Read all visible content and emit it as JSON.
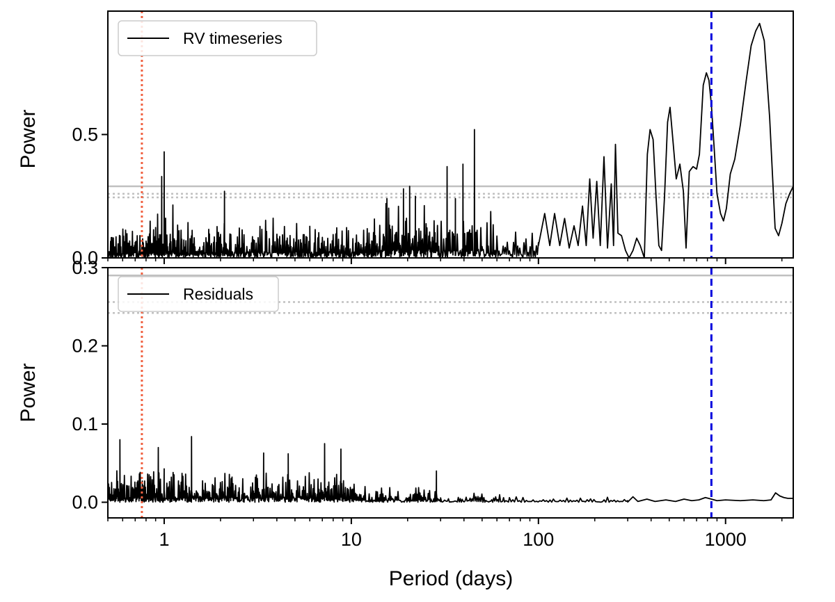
{
  "chart_data": [
    {
      "type": "line",
      "panel": "top",
      "ylabel": "Power",
      "xlabel": "",
      "xscale": "log",
      "xlim": [
        0.5,
        2300
      ],
      "ylim": [
        0,
        1.0
      ],
      "yticks": [
        0.0,
        0.5
      ],
      "ytick_labels": [
        "0.0",
        "0.5"
      ],
      "legend": {
        "label": "RV timeseries",
        "placement": "top-left"
      },
      "thresholds": [
        {
          "y": 0.29,
          "style": "solid",
          "color": "#c0c0c0"
        },
        {
          "y": 0.26,
          "style": "dotted",
          "color": "#c0c0c0"
        },
        {
          "y": 0.245,
          "style": "dotted",
          "color": "#c0c0c0"
        }
      ],
      "vlines": [
        {
          "x": 0.76,
          "style": "dotted",
          "color": "#f06040"
        },
        {
          "x": 840,
          "style": "dashed",
          "color": "#0000dd"
        }
      ],
      "series": [
        {
          "color": "#000000",
          "noise_segments": [
            {
              "x0": 0.5,
              "x1": 0.9,
              "amp": 0.16,
              "count": 140
            },
            {
              "x0": 0.9,
              "x1": 1.15,
              "amp": 0.26,
              "count": 60
            },
            {
              "x0": 1.15,
              "x1": 2.0,
              "amp": 0.16,
              "count": 130
            },
            {
              "x0": 2.0,
              "x1": 6.0,
              "amp": 0.17,
              "count": 190
            },
            {
              "x0": 6.0,
              "x1": 13.0,
              "amp": 0.16,
              "count": 140
            },
            {
              "x0": 13.0,
              "x1": 28.0,
              "amp": 0.24,
              "count": 140
            },
            {
              "x0": 28.0,
              "x1": 60.0,
              "amp": 0.22,
              "count": 100
            },
            {
              "x0": 60.0,
              "x1": 100.0,
              "amp": 0.12,
              "count": 40
            }
          ],
          "spikes": [
            {
              "x": 1.0,
              "y": 0.43
            },
            {
              "x": 0.97,
              "y": 0.33
            },
            {
              "x": 2.1,
              "y": 0.27
            },
            {
              "x": 15.5,
              "y": 0.24
            },
            {
              "x": 19.0,
              "y": 0.28
            },
            {
              "x": 20.5,
              "y": 0.29
            },
            {
              "x": 22.0,
              "y": 0.25
            },
            {
              "x": 32.5,
              "y": 0.37
            },
            {
              "x": 36.0,
              "y": 0.24
            },
            {
              "x": 39.5,
              "y": 0.38
            },
            {
              "x": 45.5,
              "y": 0.52
            }
          ],
          "points": [
            [
              100,
              0.05
            ],
            [
              108,
              0.18
            ],
            [
              115,
              0.05
            ],
            [
              122,
              0.18
            ],
            [
              130,
              0.05
            ],
            [
              138,
              0.16
            ],
            [
              146,
              0.04
            ],
            [
              155,
              0.13
            ],
            [
              163,
              0.05
            ],
            [
              172,
              0.21
            ],
            [
              180,
              0.05
            ],
            [
              188,
              0.32
            ],
            [
              196,
              0.08
            ],
            [
              205,
              0.31
            ],
            [
              214,
              0.05
            ],
            [
              224,
              0.41
            ],
            [
              234,
              0.04
            ],
            [
              245,
              0.3
            ],
            [
              252,
              0.05
            ],
            [
              258,
              0.46
            ],
            [
              266,
              0.1
            ],
            [
              278,
              0.09
            ],
            [
              292,
              0.03
            ],
            [
              305,
              0.0
            ],
            [
              320,
              0.03
            ],
            [
              335,
              0.08
            ],
            [
              350,
              0.05
            ],
            [
              368,
              0.0
            ],
            [
              382,
              0.42
            ],
            [
              395,
              0.52
            ],
            [
              410,
              0.48
            ],
            [
              425,
              0.25
            ],
            [
              440,
              0.05
            ],
            [
              455,
              0.03
            ],
            [
              472,
              0.25
            ],
            [
              490,
              0.55
            ],
            [
              505,
              0.61
            ],
            [
              520,
              0.5
            ],
            [
              545,
              0.32
            ],
            [
              570,
              0.38
            ],
            [
              595,
              0.27
            ],
            [
              615,
              0.04
            ],
            [
              640,
              0.35
            ],
            [
              670,
              0.37
            ],
            [
              700,
              0.36
            ],
            [
              725,
              0.42
            ],
            [
              760,
              0.7
            ],
            [
              790,
              0.75
            ],
            [
              815,
              0.72
            ],
            [
              840,
              0.62
            ],
            [
              870,
              0.44
            ],
            [
              900,
              0.26
            ],
            [
              940,
              0.18
            ],
            [
              975,
              0.15
            ],
            [
              1010,
              0.2
            ],
            [
              1060,
              0.34
            ],
            [
              1120,
              0.4
            ],
            [
              1200,
              0.54
            ],
            [
              1290,
              0.72
            ],
            [
              1370,
              0.86
            ],
            [
              1450,
              0.92
            ],
            [
              1520,
              0.95
            ],
            [
              1610,
              0.88
            ],
            [
              1720,
              0.57
            ],
            [
              1840,
              0.12
            ],
            [
              1920,
              0.09
            ],
            [
              2000,
              0.14
            ],
            [
              2100,
              0.22
            ],
            [
              2200,
              0.26
            ],
            [
              2300,
              0.29
            ]
          ]
        }
      ]
    },
    {
      "type": "line",
      "panel": "bottom",
      "ylabel": "Power",
      "xlabel": "Period (days)",
      "xscale": "log",
      "xlim": [
        0.5,
        2300
      ],
      "ylim": [
        -0.02,
        0.3
      ],
      "yticks": [
        0.0,
        0.1,
        0.2,
        0.3
      ],
      "ytick_labels": [
        "0.0",
        "0.1",
        "0.2",
        "0.3"
      ],
      "xticks": [
        1,
        10,
        100,
        1000
      ],
      "xtick_labels": [
        "1",
        "10",
        "100",
        "1000"
      ],
      "legend": {
        "label": "Residuals",
        "placement": "top-left"
      },
      "thresholds": [
        {
          "y": 0.29,
          "style": "solid",
          "color": "#c0c0c0"
        },
        {
          "y": 0.256,
          "style": "dotted",
          "color": "#c0c0c0"
        },
        {
          "y": 0.242,
          "style": "dotted",
          "color": "#c0c0c0"
        }
      ],
      "vlines": [
        {
          "x": 0.76,
          "style": "dotted",
          "color": "#f06040"
        },
        {
          "x": 840,
          "style": "dashed",
          "color": "#0000dd"
        }
      ],
      "series": [
        {
          "color": "#000000",
          "noise_segments": [
            {
              "x0": 0.5,
              "x1": 1.0,
              "amp": 0.05,
              "count": 150
            },
            {
              "x0": 1.0,
              "x1": 3.0,
              "amp": 0.045,
              "count": 200
            },
            {
              "x0": 3.0,
              "x1": 10.0,
              "amp": 0.045,
              "count": 200
            },
            {
              "x0": 10.0,
              "x1": 30.0,
              "amp": 0.024,
              "count": 130
            },
            {
              "x0": 30.0,
              "x1": 70.0,
              "amp": 0.013,
              "count": 70
            },
            {
              "x0": 70.0,
              "x1": 300.0,
              "amp": 0.008,
              "count": 70
            }
          ],
          "spikes": [
            {
              "x": 0.58,
              "y": 0.08
            },
            {
              "x": 0.93,
              "y": 0.07
            },
            {
              "x": 1.4,
              "y": 0.084
            },
            {
              "x": 3.4,
              "y": 0.063
            },
            {
              "x": 4.6,
              "y": 0.062
            },
            {
              "x": 7.2,
              "y": 0.075
            },
            {
              "x": 8.8,
              "y": 0.068
            },
            {
              "x": 28.5,
              "y": 0.04
            }
          ],
          "points": [
            [
              300,
              0.002
            ],
            [
              320,
              0.007
            ],
            [
              340,
              0.001
            ],
            [
              380,
              0.004
            ],
            [
              420,
              0.001
            ],
            [
              480,
              0.003
            ],
            [
              540,
              0.001
            ],
            [
              600,
              0.004
            ],
            [
              660,
              0.002
            ],
            [
              720,
              0.003
            ],
            [
              780,
              0.006
            ],
            [
              840,
              0.004
            ],
            [
              900,
              0.002
            ],
            [
              1000,
              0.003
            ],
            [
              1200,
              0.002
            ],
            [
              1400,
              0.003
            ],
            [
              1600,
              0.002
            ],
            [
              1750,
              0.003
            ],
            [
              1850,
              0.012
            ],
            [
              1950,
              0.008
            ],
            [
              2050,
              0.006
            ],
            [
              2150,
              0.005
            ],
            [
              2300,
              0.005
            ]
          ]
        }
      ]
    }
  ]
}
